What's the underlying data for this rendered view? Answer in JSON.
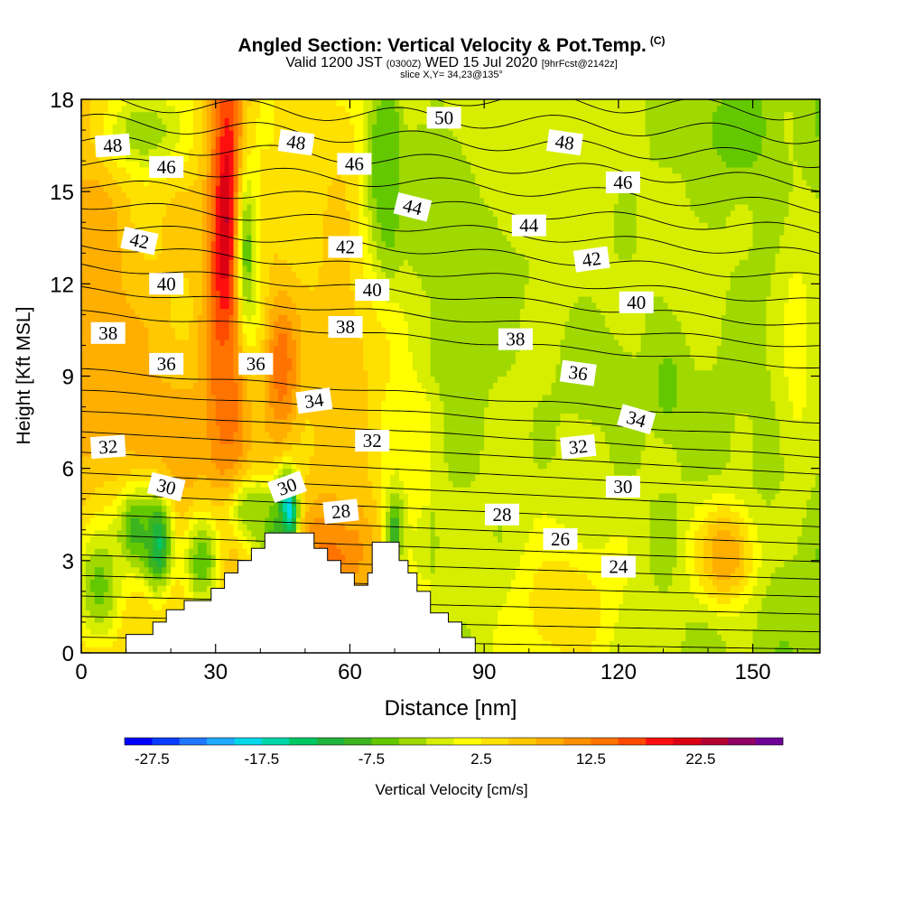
{
  "title": {
    "main": "Angled Section: Vertical Velocity & Pot.Temp.",
    "copyright": "(C)",
    "valid_a": "Valid 1200 JST",
    "valid_z": "(0300Z)",
    "valid_b": "WED 15 Jul 2020",
    "forecast": "[9hrFcst@2142z]",
    "slice": "slice X,Y= 34,23@135°"
  },
  "chart_data": {
    "type": "heatmap",
    "xlabel": "Distance [nm]",
    "ylabel": "Height [Kft MSL]",
    "xlim": [
      0,
      165
    ],
    "ylim": [
      0,
      18
    ],
    "x_ticks": [
      0,
      30,
      60,
      90,
      120,
      150
    ],
    "y_ticks": [
      0,
      3,
      6,
      9,
      12,
      15,
      18
    ],
    "colorbar": {
      "label": "Vertical Velocity [cm/s]",
      "tick_labels": [
        "-27.5",
        "-17.5",
        "-7.5",
        "2.5",
        "12.5",
        "22.5"
      ],
      "tick_values": [
        -27.5,
        -17.5,
        -7.5,
        2.5,
        12.5,
        22.5
      ],
      "min": -30,
      "step": 2.5,
      "colors": [
        "#0000ff",
        "#0a3cff",
        "#1f78ff",
        "#1fa9ff",
        "#00d8ea",
        "#00d7a9",
        "#00c864",
        "#1fb43c",
        "#3cb41f",
        "#64c800",
        "#a0d800",
        "#d7ee00",
        "#ffff00",
        "#ffe100",
        "#ffc800",
        "#ffaf00",
        "#ff9100",
        "#ff7300",
        "#ff4b00",
        "#ff0f0f",
        "#dc0014",
        "#b40032",
        "#910064",
        "#6e0096"
      ]
    },
    "terrain": [
      [
        0,
        0
      ],
      [
        10,
        0
      ],
      [
        10,
        0.6
      ],
      [
        16,
        0.6
      ],
      [
        16,
        1.0
      ],
      [
        19,
        1.0
      ],
      [
        19,
        1.4
      ],
      [
        23,
        1.4
      ],
      [
        23,
        1.7
      ],
      [
        29,
        1.7
      ],
      [
        29,
        2.1
      ],
      [
        32,
        2.1
      ],
      [
        32,
        2.6
      ],
      [
        35,
        2.6
      ],
      [
        35,
        3.0
      ],
      [
        38,
        3.0
      ],
      [
        38,
        3.4
      ],
      [
        41,
        3.4
      ],
      [
        41,
        3.9
      ],
      [
        52,
        3.9
      ],
      [
        52,
        3.4
      ],
      [
        55,
        3.4
      ],
      [
        55,
        3.0
      ],
      [
        58,
        3.0
      ],
      [
        58,
        2.6
      ],
      [
        61,
        2.6
      ],
      [
        61,
        2.2
      ],
      [
        64,
        2.2
      ],
      [
        64,
        2.6
      ],
      [
        65,
        2.6
      ],
      [
        65,
        3.6
      ],
      [
        71,
        3.6
      ],
      [
        71,
        3.0
      ],
      [
        73,
        3.0
      ],
      [
        73,
        2.6
      ],
      [
        75,
        2.6
      ],
      [
        75,
        2.0
      ],
      [
        78,
        2.0
      ],
      [
        78,
        1.3
      ],
      [
        82,
        1.3
      ],
      [
        82,
        1.0
      ],
      [
        85,
        1.0
      ],
      [
        85,
        0.5
      ],
      [
        88,
        0.5
      ],
      [
        88,
        0
      ],
      [
        165,
        0
      ]
    ],
    "velocity_features": [
      {
        "x": 33,
        "y": 12.8,
        "sx": 3,
        "sy": 4.5,
        "v": 27
      },
      {
        "x": 32,
        "y": 8.5,
        "sx": 3,
        "sy": 2.5,
        "v": 15
      },
      {
        "x": 45,
        "y": 9.3,
        "sx": 3,
        "sy": 1.8,
        "v": 15
      },
      {
        "x": 57,
        "y": 3.4,
        "sx": 5,
        "sy": 1.2,
        "v": 23
      },
      {
        "x": 58,
        "y": 8.0,
        "sx": 6,
        "sy": 5.0,
        "v": 7
      },
      {
        "x": 3,
        "y": 9.5,
        "sx": 5,
        "sy": 5.0,
        "v": 10
      },
      {
        "x": 16,
        "y": 5.5,
        "sx": 12,
        "sy": 3.0,
        "v": 10
      },
      {
        "x": 62,
        "y": 14.5,
        "sx": 6,
        "sy": 2.0,
        "v": 6
      },
      {
        "x": 5,
        "y": 4.5,
        "sx": 6,
        "sy": 2.0,
        "v": 6
      },
      {
        "x": 46,
        "y": 4.6,
        "sx": 1.5,
        "sy": 0.8,
        "v": -28
      },
      {
        "x": 43.5,
        "y": 4.0,
        "sx": 2.5,
        "sy": 0.8,
        "v": -10
      },
      {
        "x": 17,
        "y": 3.6,
        "sx": 2.5,
        "sy": 1.2,
        "v": -14
      },
      {
        "x": 12,
        "y": 4.0,
        "sx": 3,
        "sy": 1.0,
        "v": -9
      },
      {
        "x": 4,
        "y": 2.2,
        "sx": 4,
        "sy": 1.5,
        "v": -6
      },
      {
        "x": 27,
        "y": 3.0,
        "sx": 3,
        "sy": 1.2,
        "v": -7
      },
      {
        "x": 38,
        "y": 4.6,
        "sx": 4,
        "sy": 0.8,
        "v": -5
      },
      {
        "x": 69,
        "y": 15.8,
        "sx": 1.5,
        "sy": 1.8,
        "v": -15
      },
      {
        "x": 67,
        "y": 16.0,
        "sx": 3,
        "sy": 2.5,
        "v": -7
      },
      {
        "x": 86,
        "y": 14.0,
        "sx": 10,
        "sy": 2.0,
        "v": -7
      },
      {
        "x": 75,
        "y": 15.0,
        "sx": 5,
        "sy": 1.5,
        "v": -5
      },
      {
        "x": 86,
        "y": 10.0,
        "sx": 6,
        "sy": 4.0,
        "v": -3
      },
      {
        "x": 37,
        "y": 13.0,
        "sx": 2,
        "sy": 2.5,
        "v": -6
      },
      {
        "x": 14,
        "y": 17.0,
        "sx": 6,
        "sy": 1.0,
        "v": -5
      },
      {
        "x": 146,
        "y": 17.0,
        "sx": 5,
        "sy": 1.0,
        "v": -7
      },
      {
        "x": 115,
        "y": 9.0,
        "sx": 6,
        "sy": 1.2,
        "v": -5
      },
      {
        "x": 131,
        "y": 8.7,
        "sx": 3,
        "sy": 1.2,
        "v": -6
      },
      {
        "x": 158,
        "y": 1.5,
        "sx": 4,
        "sy": 1.0,
        "v": -5
      },
      {
        "x": 100,
        "y": 16.0,
        "sx": 10,
        "sy": 2.0,
        "v": 0
      },
      {
        "x": 70,
        "y": 4.0,
        "sx": 1.5,
        "sy": 1.0,
        "v": -9
      },
      {
        "x": 144,
        "y": 3.2,
        "sx": 5,
        "sy": 1.2,
        "v": 10
      },
      {
        "x": 108,
        "y": 1.5,
        "sx": 8,
        "sy": 1.5,
        "v": 5
      },
      {
        "x": 160,
        "y": 10.0,
        "sx": 4,
        "sy": 4.0,
        "v": 1
      },
      {
        "x": 137,
        "y": 12.5,
        "sx": 6,
        "sy": 1.5,
        "v": -1
      }
    ],
    "theta_contour_labels": [
      {
        "value": "50",
        "x": 81,
        "y": 17.4,
        "angle": 0
      },
      {
        "value": "48",
        "x": 7,
        "y": 16.5,
        "angle": -4
      },
      {
        "value": "48",
        "x": 48,
        "y": 16.6,
        "angle": 8
      },
      {
        "value": "48",
        "x": 108,
        "y": 16.6,
        "angle": 8
      },
      {
        "value": "46",
        "x": 19,
        "y": 15.8,
        "angle": 0
      },
      {
        "value": "46",
        "x": 61,
        "y": 15.9,
        "angle": 0
      },
      {
        "value": "46",
        "x": 121,
        "y": 15.3,
        "angle": 0
      },
      {
        "value": "44",
        "x": 74,
        "y": 14.5,
        "angle": 14
      },
      {
        "value": "44",
        "x": 100,
        "y": 13.9,
        "angle": 0
      },
      {
        "value": "42",
        "x": 13,
        "y": 13.4,
        "angle": 12
      },
      {
        "value": "42",
        "x": 59,
        "y": 13.2,
        "angle": 0
      },
      {
        "value": "42",
        "x": 114,
        "y": 12.8,
        "angle": -8
      },
      {
        "value": "40",
        "x": 19,
        "y": 12.0,
        "angle": 0
      },
      {
        "value": "40",
        "x": 65,
        "y": 11.8,
        "angle": 0
      },
      {
        "value": "40",
        "x": 124,
        "y": 11.4,
        "angle": 0
      },
      {
        "value": "38",
        "x": 6,
        "y": 10.4,
        "angle": 0
      },
      {
        "value": "38",
        "x": 59,
        "y": 10.6,
        "angle": 0
      },
      {
        "value": "38",
        "x": 97,
        "y": 10.2,
        "angle": 0
      },
      {
        "value": "36",
        "x": 19,
        "y": 9.4,
        "angle": 0
      },
      {
        "value": "36",
        "x": 39,
        "y": 9.4,
        "angle": 0
      },
      {
        "value": "36",
        "x": 111,
        "y": 9.1,
        "angle": 8
      },
      {
        "value": "34",
        "x": 52,
        "y": 8.2,
        "angle": -8
      },
      {
        "value": "34",
        "x": 124,
        "y": 7.6,
        "angle": 16
      },
      {
        "value": "32",
        "x": 6,
        "y": 6.7,
        "angle": -4
      },
      {
        "value": "32",
        "x": 65,
        "y": 6.9,
        "angle": 0
      },
      {
        "value": "32",
        "x": 111,
        "y": 6.7,
        "angle": -6
      },
      {
        "value": "30",
        "x": 19,
        "y": 5.4,
        "angle": 14
      },
      {
        "value": "30",
        "x": 46,
        "y": 5.4,
        "angle": -20
      },
      {
        "value": "30",
        "x": 121,
        "y": 5.4,
        "angle": 0
      },
      {
        "value": "28",
        "x": 58,
        "y": 4.6,
        "angle": -6
      },
      {
        "value": "28",
        "x": 94,
        "y": 4.5,
        "angle": 0
      },
      {
        "value": "26",
        "x": 107,
        "y": 3.7,
        "angle": 0
      },
      {
        "value": "24",
        "x": 120,
        "y": 2.8,
        "angle": 0
      }
    ]
  }
}
